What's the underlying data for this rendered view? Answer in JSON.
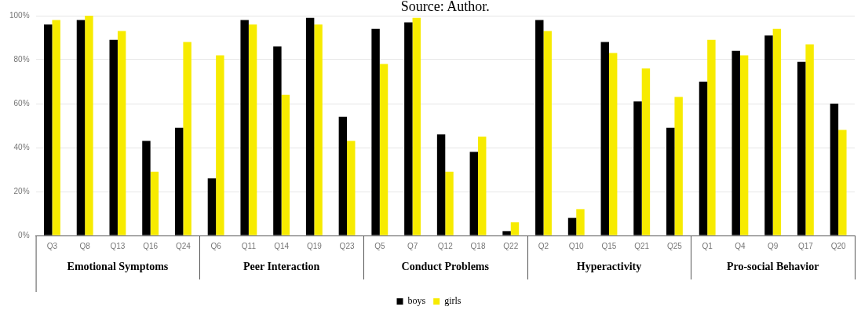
{
  "chart_data": {
    "type": "bar",
    "categories": [
      "Q3",
      "Q8",
      "Q13",
      "Q16",
      "Q24",
      "Q6",
      "Q11",
      "Q14",
      "Q19",
      "Q23",
      "Q5",
      "Q7",
      "Q12",
      "Q18",
      "Q22",
      "Q2",
      "Q10",
      "Q15",
      "Q21",
      "Q25",
      "Q1",
      "Q4",
      "Q9",
      "Q17",
      "Q20"
    ],
    "series": [
      {
        "name": "boys",
        "color": "#000000",
        "values": [
          96,
          98,
          89,
          43,
          49,
          26,
          98,
          86,
          99,
          54,
          94,
          97,
          46,
          38,
          2,
          98,
          8,
          88,
          61,
          49,
          70,
          84,
          91,
          79,
          60
        ]
      },
      {
        "name": "girls",
        "color": "#f7eb00",
        "values": [
          98,
          100,
          93,
          29,
          88,
          82,
          96,
          64,
          96,
          43,
          78,
          99,
          29,
          45,
          6,
          93,
          12,
          83,
          76,
          63,
          89,
          82,
          94,
          87,
          48
        ]
      }
    ],
    "ylim": [
      0,
      100
    ],
    "yticks": [
      {
        "value": 0,
        "label": "0%"
      },
      {
        "value": 20,
        "label": "20%"
      },
      {
        "value": 40,
        "label": "40%"
      },
      {
        "value": 60,
        "label": "60%"
      },
      {
        "value": 80,
        "label": "80%"
      },
      {
        "value": 100,
        "label": "100%"
      }
    ],
    "grid": "y",
    "legend": "bottom",
    "annotations": [
      "Source: Author.",
      "Emotional Symptoms",
      "Peer Interaction",
      "Conduct Problems",
      "Hyperactivity",
      "Pro-social Behavior"
    ]
  }
}
